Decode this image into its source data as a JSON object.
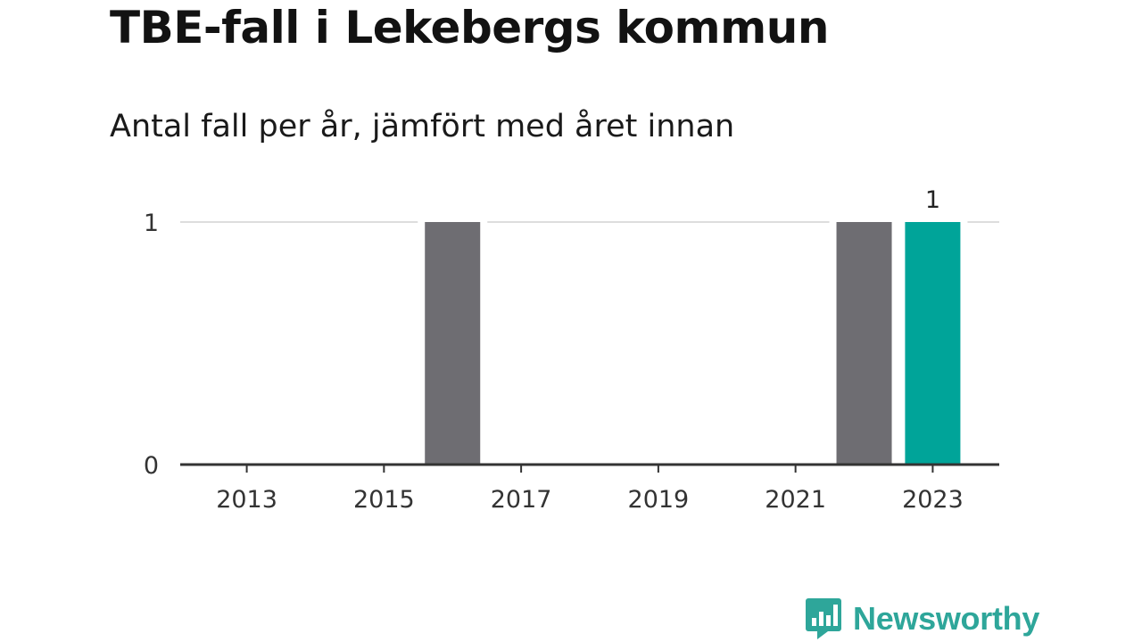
{
  "title": "TBE-fall i Lekebergs kommun",
  "subtitle": "Antal fall per år, jämfört med året innan",
  "chart_data": {
    "type": "bar",
    "categories": [
      "2013",
      "2014",
      "2015",
      "2016",
      "2017",
      "2018",
      "2019",
      "2020",
      "2021",
      "2022",
      "2023"
    ],
    "values": [
      0,
      0,
      0,
      1,
      0,
      0,
      0,
      0,
      0,
      1,
      1
    ],
    "highlight_index": 10,
    "highlight_label": "1",
    "x_ticks": [
      "2013",
      "2015",
      "2017",
      "2019",
      "2021",
      "2023"
    ],
    "y_ticks": [
      0,
      1
    ],
    "ylim": [
      0,
      1
    ],
    "grid": true,
    "colors": {
      "bar": "#6e6d72",
      "highlight": "#00a499",
      "grid": "#dddddd",
      "axis": "#333333"
    }
  },
  "brand": {
    "name": "Newsworthy",
    "icon": "newsworthy-bar-chart-icon",
    "color": "#2ea69a"
  }
}
